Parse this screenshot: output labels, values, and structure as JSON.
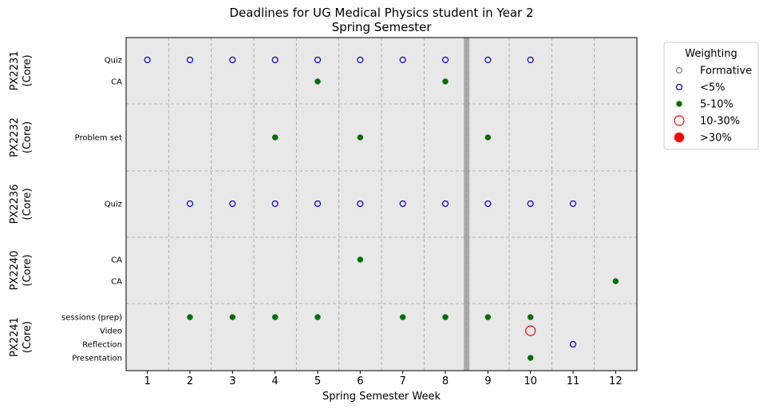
{
  "chart_data": {
    "type": "scatter",
    "title_line1": "Deadlines for UG Medical Physics student in Year 2",
    "title_line2": "Spring Semester",
    "xlabel": "Spring Semester Week",
    "x_ticks": [
      1,
      2,
      3,
      4,
      5,
      6,
      7,
      8,
      9,
      10,
      11,
      12
    ],
    "xlim": [
      0.5,
      12.5
    ],
    "grid": true,
    "reading_week_marker": 8.5,
    "legend": {
      "title": "Weighting",
      "placement": "outside-top-right",
      "entries": [
        {
          "key": "formative",
          "label": "Formative",
          "color": "#808080",
          "filled": false,
          "size": "small"
        },
        {
          "key": "lt5",
          "label": "<5%",
          "color": "#0000cc",
          "filled": false,
          "size": "small"
        },
        {
          "key": "5to10",
          "label": "5-10%",
          "color": "#007000",
          "filled": true,
          "size": "small"
        },
        {
          "key": "10to30",
          "label": "10-30%",
          "color": "#ff0000",
          "filled": false,
          "size": "large"
        },
        {
          "key": "gt30",
          "label": ">30%",
          "color": "#ff0000",
          "filled": true,
          "size": "large"
        }
      ]
    },
    "modules": [
      {
        "name": "PX2231",
        "tag": "(Core)",
        "rows": [
          {
            "label": "Quiz",
            "points": [
              {
                "week": 1,
                "weighting": "lt5"
              },
              {
                "week": 2,
                "weighting": "lt5"
              },
              {
                "week": 3,
                "weighting": "lt5"
              },
              {
                "week": 4,
                "weighting": "lt5"
              },
              {
                "week": 5,
                "weighting": "lt5"
              },
              {
                "week": 6,
                "weighting": "lt5"
              },
              {
                "week": 7,
                "weighting": "lt5"
              },
              {
                "week": 8,
                "weighting": "lt5"
              },
              {
                "week": 9,
                "weighting": "lt5"
              },
              {
                "week": 10,
                "weighting": "lt5"
              }
            ]
          },
          {
            "label": "CA",
            "points": [
              {
                "week": 5,
                "weighting": "5to10"
              },
              {
                "week": 8,
                "weighting": "5to10"
              }
            ]
          }
        ]
      },
      {
        "name": "PX2232",
        "tag": "(Core)",
        "rows": [
          {
            "label": "Problem set",
            "points": [
              {
                "week": 4,
                "weighting": "5to10"
              },
              {
                "week": 6,
                "weighting": "5to10"
              },
              {
                "week": 9,
                "weighting": "5to10"
              }
            ]
          }
        ]
      },
      {
        "name": "PX2236",
        "tag": "(Core)",
        "rows": [
          {
            "label": "Quiz",
            "points": [
              {
                "week": 2,
                "weighting": "lt5"
              },
              {
                "week": 3,
                "weighting": "lt5"
              },
              {
                "week": 4,
                "weighting": "lt5"
              },
              {
                "week": 5,
                "weighting": "lt5"
              },
              {
                "week": 6,
                "weighting": "lt5"
              },
              {
                "week": 7,
                "weighting": "lt5"
              },
              {
                "week": 8,
                "weighting": "lt5"
              },
              {
                "week": 9,
                "weighting": "lt5"
              },
              {
                "week": 10,
                "weighting": "lt5"
              },
              {
                "week": 11,
                "weighting": "lt5"
              }
            ]
          }
        ]
      },
      {
        "name": "PX2240",
        "tag": "(Core)",
        "rows": [
          {
            "label": "CA",
            "points": [
              {
                "week": 6,
                "weighting": "5to10"
              }
            ]
          },
          {
            "label": "CA",
            "points": [
              {
                "week": 12,
                "weighting": "5to10"
              }
            ]
          }
        ]
      },
      {
        "name": "PX2241",
        "tag": "(Core)",
        "rows": [
          {
            "label": "sessions (prep)",
            "points": [
              {
                "week": 2,
                "weighting": "5to10"
              },
              {
                "week": 3,
                "weighting": "5to10"
              },
              {
                "week": 4,
                "weighting": "5to10"
              },
              {
                "week": 5,
                "weighting": "5to10"
              },
              {
                "week": 7,
                "weighting": "5to10"
              },
              {
                "week": 8,
                "weighting": "5to10"
              },
              {
                "week": 9,
                "weighting": "5to10"
              },
              {
                "week": 10,
                "weighting": "5to10"
              }
            ]
          },
          {
            "label": "Video",
            "points": [
              {
                "week": 10,
                "weighting": "10to30"
              }
            ]
          },
          {
            "label": "Reflection",
            "points": [
              {
                "week": 11,
                "weighting": "lt5"
              }
            ]
          },
          {
            "label": "Presentation",
            "points": [
              {
                "week": 10,
                "weighting": "5to10"
              }
            ]
          }
        ]
      }
    ]
  }
}
